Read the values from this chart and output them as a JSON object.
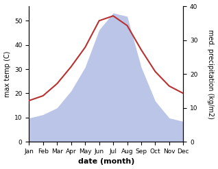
{
  "months": [
    "Jan",
    "Feb",
    "Mar",
    "Apr",
    "May",
    "Jun",
    "Jul",
    "Aug",
    "Sep",
    "Oct",
    "Nov",
    "Dec"
  ],
  "x": [
    1,
    2,
    3,
    4,
    5,
    6,
    7,
    8,
    9,
    10,
    11,
    12
  ],
  "temperature": [
    17,
    19,
    24,
    31,
    39,
    50,
    52,
    48,
    38,
    29,
    23,
    20
  ],
  "precipitation": [
    7,
    8,
    10,
    15,
    22,
    33,
    38,
    37,
    22,
    12,
    7,
    6
  ],
  "temp_color": "#b83030",
  "precip_fill_color": "#bbc5e8",
  "temp_ylim": [
    0,
    56
  ],
  "precip_ylim": [
    0,
    40
  ],
  "temp_yticks": [
    0,
    10,
    20,
    30,
    40,
    50
  ],
  "precip_yticks": [
    0,
    10,
    20,
    30,
    40
  ],
  "ylabel_left": "max temp (C)",
  "ylabel_right": "med. precipitation (kg/m2)",
  "xlabel": "date (month)",
  "bg_color": "#ffffff",
  "line_width": 1.5,
  "tick_fontsize": 6.5,
  "label_fontsize": 7,
  "xlabel_fontsize": 8
}
